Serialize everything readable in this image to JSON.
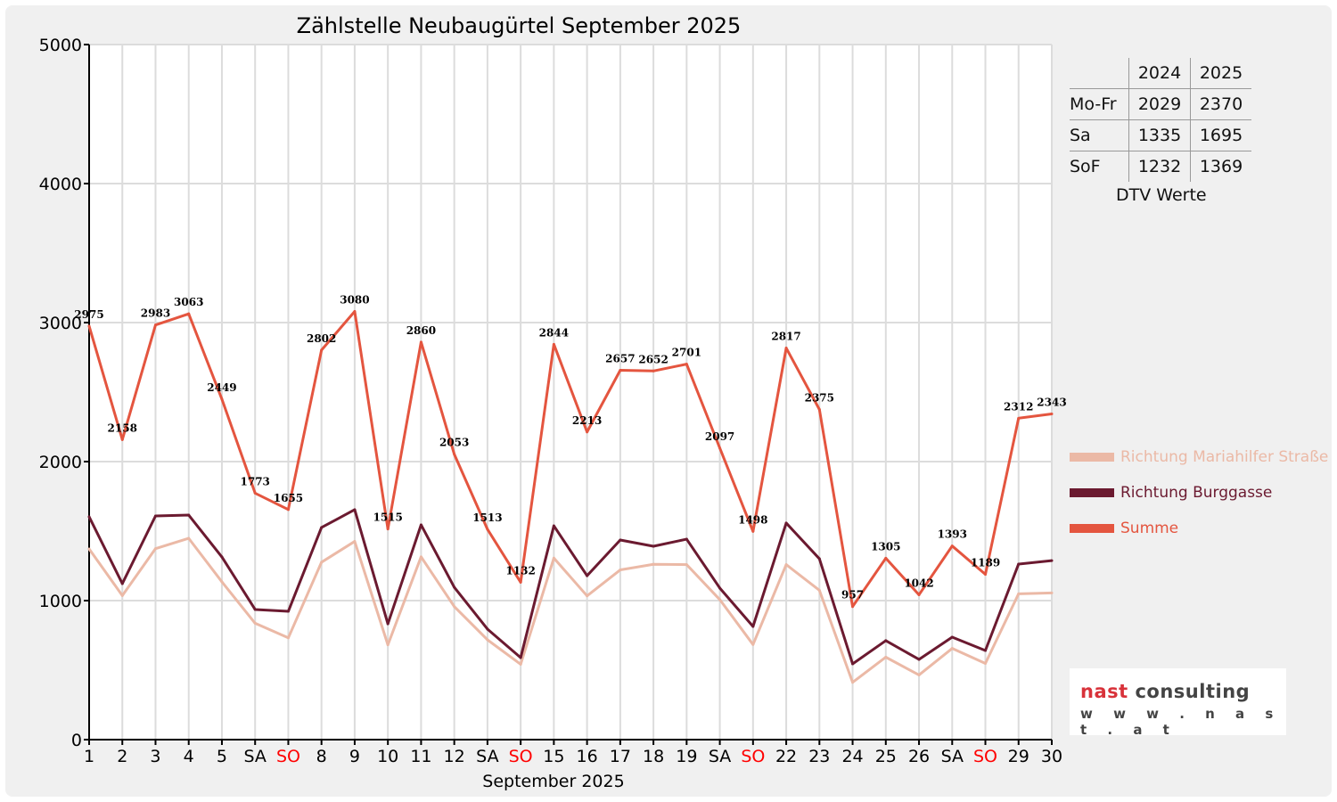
{
  "chart_data": {
    "type": "line",
    "title": "Zählstelle Neubaugürtel September 2025",
    "xlabel": "September 2025",
    "ylabel": "",
    "ylim": [
      0,
      5000
    ],
    "yticks": [
      "0",
      "1000",
      "2000",
      "3000",
      "4000",
      "5000"
    ],
    "categories": [
      "1",
      "2",
      "3",
      "4",
      "5",
      "SA",
      "SO",
      "8",
      "9",
      "10",
      "11",
      "12",
      "SA",
      "SO",
      "15",
      "16",
      "17",
      "18",
      "19",
      "SA",
      "SO",
      "22",
      "23",
      "24",
      "25",
      "26",
      "SA",
      "SO",
      "29",
      "30"
    ],
    "weekend_color": "#ff0000",
    "grid": true,
    "legend_position": "right",
    "series": [
      {
        "name": "Richtung Mariahilfer Straße",
        "color": "#ebb9a6",
        "values": [
          1372,
          1036,
          1374,
          1448,
          1135,
          837,
          732,
          1276,
          1426,
          682,
          1315,
          957,
          718,
          542,
          1306,
          1034,
          1221,
          1261,
          1259,
          1007,
          684,
          1259,
          1074,
          412,
          593,
          465,
          656,
          548,
          1049,
          1055
        ]
      },
      {
        "name": "Richtung Burggasse",
        "color": "#6b1a30",
        "values": [
          1603,
          1122,
          1609,
          1615,
          1314,
          936,
          923,
          1526,
          1654,
          833,
          1545,
          1096,
          795,
          590,
          1538,
          1179,
          1436,
          1391,
          1442,
          1090,
          814,
          1558,
          1301,
          545,
          712,
          577,
          737,
          641,
          1263,
          1288
        ]
      },
      {
        "name": "Summe",
        "color": "#e4553f",
        "values": [
          2975,
          2158,
          2983,
          3063,
          2449,
          1773,
          1655,
          2802,
          3080,
          1515,
          2860,
          2053,
          1513,
          1132,
          2844,
          2213,
          2657,
          2652,
          2701,
          2097,
          1498,
          2817,
          2375,
          957,
          1305,
          1042,
          1393,
          1189,
          2312,
          2343
        ],
        "labels": true
      }
    ]
  },
  "dtv_table": {
    "headers": [
      "",
      "2024",
      "2025"
    ],
    "rows": [
      {
        "label": "Mo-Fr",
        "y2024": "2029",
        "y2025": "2370"
      },
      {
        "label": "Sa",
        "y2024": "1335",
        "y2025": "1695"
      },
      {
        "label": "SoF",
        "y2024": "1232",
        "y2025": "1369"
      }
    ],
    "caption": "DTV Werte"
  },
  "logo": {
    "part1": "nast",
    "part2": " consulting",
    "url": "w w w . n a s t . a t"
  }
}
